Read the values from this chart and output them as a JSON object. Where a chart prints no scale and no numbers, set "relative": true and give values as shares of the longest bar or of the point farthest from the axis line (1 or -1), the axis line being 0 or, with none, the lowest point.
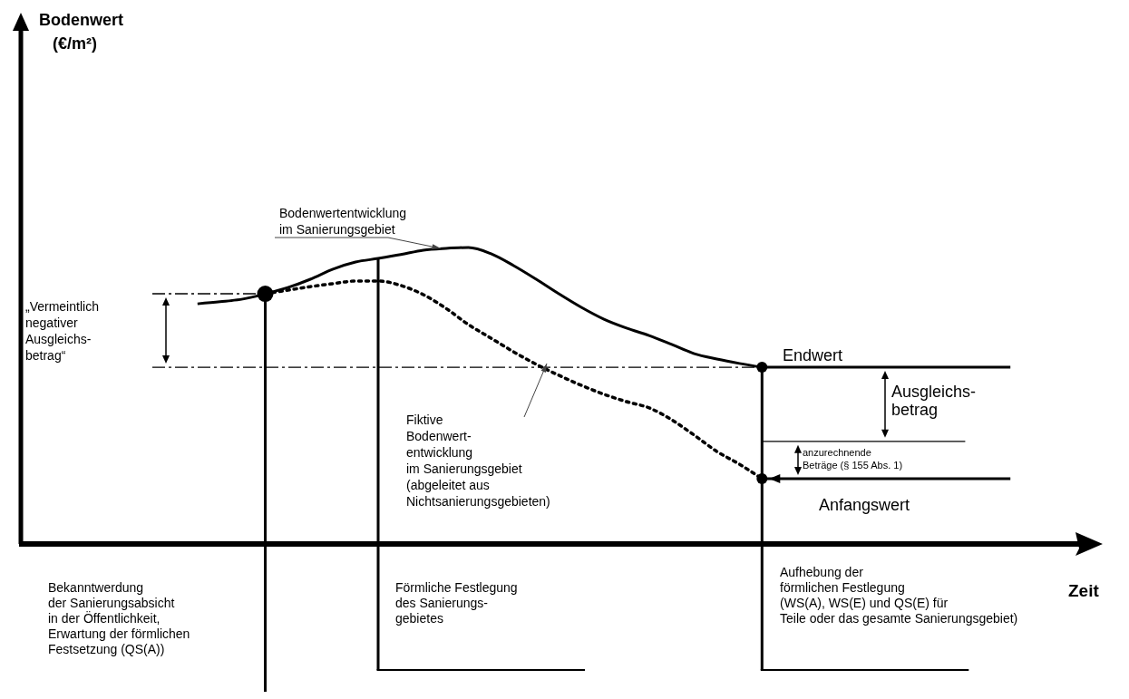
{
  "chart_data": {
    "type": "line",
    "relative": true,
    "xlabel": "Zeit",
    "grid": false,
    "marker": "none",
    "categories": [
      null,
      null,
      null,
      null,
      null,
      null,
      null,
      null,
      null,
      null,
      null,
      null,
      null,
      null,
      null,
      null,
      null,
      null,
      null,
      null,
      null,
      null,
      null,
      null,
      null,
      null,
      null,
      null,
      null,
      null,
      null,
      null,
      null,
      null,
      null,
      null,
      null,
      null,
      null
    ],
    "series": [
      {
        "name": "Bodenwertentwicklung\nim  Sanierungsgebiet",
        "color": "#000000",
        "line_style": "solid",
        "values": [
          null,
          null,
          0.81,
          0.817,
          0.826,
          0.844,
          0.865,
          0.893,
          0.927,
          0.951,
          0.963,
          0.976,
          0.991,
          0.997,
          1.0,
          0.979,
          0.939,
          0.893,
          0.844,
          0.798,
          0.758,
          0.728,
          0.703,
          0.673,
          0.642,
          0.624,
          0.609,
          0.596,
          null,
          null,
          null,
          null,
          null,
          null,
          null,
          null,
          null,
          null,
          null
        ]
      },
      {
        "name": "Fiktive\nBodenwert-\nentwicklung\nim Sanierungsgebiet\n(abgeleitet aus\nNichtsanierungsgebieten)",
        "color": "#000000",
        "line_style": "dotted",
        "values": [
          null,
          null,
          null,
          null,
          null,
          0.844,
          0.856,
          0.868,
          0.878,
          0.887,
          0.887,
          0.872,
          0.841,
          0.795,
          0.74,
          0.694,
          0.648,
          0.606,
          0.569,
          0.535,
          0.505,
          0.48,
          0.459,
          0.419,
          0.367,
          0.312,
          0.269,
          0.22,
          null,
          null,
          null,
          null,
          null,
          null,
          null,
          null,
          null,
          null,
          null
        ]
      },
      {
        "name": "Endwert",
        "color": "#000000",
        "line_style": "solid",
        "values": [
          null,
          null,
          null,
          null,
          null,
          null,
          null,
          null,
          null,
          null,
          null,
          null,
          null,
          null,
          null,
          null,
          null,
          null,
          null,
          null,
          null,
          null,
          null,
          null,
          null,
          null,
          null,
          0.596,
          0.596,
          0.596,
          0.596,
          0.596,
          0.596,
          0.596,
          0.596,
          0.596,
          0.596,
          0.596,
          0.596
        ]
      },
      {
        "name": "Anfangswert",
        "color": "#000000",
        "line_style": "solid",
        "values": [
          null,
          null,
          null,
          null,
          null,
          null,
          null,
          null,
          null,
          null,
          null,
          null,
          null,
          null,
          null,
          null,
          null,
          null,
          null,
          null,
          null,
          null,
          null,
          null,
          null,
          null,
          null,
          0.22,
          0.22,
          0.22,
          0.22,
          0.22,
          0.22,
          0.22,
          0.22,
          0.22,
          0.22,
          0.22,
          0.22
        ]
      },
      {
        "color": "#000000",
        "line_style": "solid",
        "values": [
          null,
          null,
          null,
          null,
          null,
          null,
          null,
          null,
          null,
          null,
          null,
          null,
          null,
          null,
          null,
          null,
          null,
          null,
          null,
          null,
          null,
          null,
          null,
          null,
          null,
          null,
          null,
          0.346,
          0.346,
          0.346,
          0.346,
          0.346,
          0.346,
          0.346,
          0.346,
          0.346,
          0.346,
          null,
          null
        ]
      },
      {
        "color": "#000000",
        "line_style": "dashed",
        "values": [
          0.844,
          0.844,
          0.844,
          0.844,
          0.844,
          0.844,
          null,
          null,
          null,
          null,
          null,
          null,
          null,
          null,
          null,
          null,
          null,
          null,
          null,
          null,
          null,
          null,
          null,
          null,
          null,
          null,
          null,
          null,
          null,
          null,
          null,
          null,
          null,
          null,
          null,
          null,
          null,
          null,
          null
        ]
      },
      {
        "color": "#000000",
        "line_style": "dashed",
        "values": [
          0.596,
          0.596,
          0.596,
          0.596,
          0.596,
          0.596,
          0.596,
          0.596,
          0.596,
          0.596,
          0.596,
          0.596,
          0.596,
          0.596,
          0.596,
          0.596,
          0.596,
          0.596,
          0.596,
          0.596,
          0.596,
          0.596,
          0.596,
          0.596,
          0.596,
          0.596,
          0.596,
          0.596,
          null,
          null,
          null,
          null,
          null,
          null,
          null,
          null,
          null,
          null,
          null
        ]
      }
    ],
    "annotations": [
      "„Vermeintlich\nnegativer\nAusgleichs-\nbetrag“",
      "Ausgleichs-\nbetrag",
      "anzurechnende\nBeträge (§ 155 Abs. 1)",
      "Bekanntwerdung\nder Sanierungsabsicht\nin der Öffentlichkeit,\nErwartung der förmlichen\nFestsetzung (QS(A))",
      "Förmliche Festlegung\ndes Sanierungs-\ngebietes",
      "Aufhebung der\nförmlichen Festlegung\n(WS(A), WS(E) und QS(E) für\nTeile oder das gesamte Sanierungsgebiet)",
      "Bodenwert\n(€/m²)"
    ]
  }
}
